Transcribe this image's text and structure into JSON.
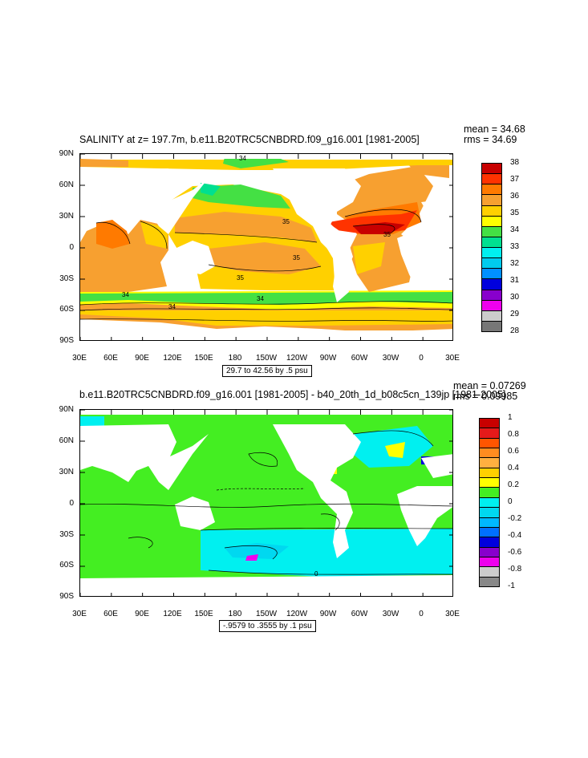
{
  "panels": [
    {
      "title": "SALINITY at z= 197.7m, b.e11.B20TRC5CNBDRD.f09_g16.001 [1981-2005]",
      "stats": [
        "mean = 34.68",
        "rms = 34.69"
      ],
      "range_label": "29.7 to 42.56 by .5 psu",
      "y_ticks": [
        "90N",
        "60N",
        "30N",
        "0",
        "30S",
        "60S",
        "90S"
      ],
      "x_ticks": [
        "30E",
        "60E",
        "90E",
        "120E",
        "150E",
        "180",
        "150W",
        "120W",
        "90W",
        "60W",
        "30W",
        "0",
        "30E"
      ],
      "legend_labels": [
        "38",
        "37",
        "36",
        "35",
        "34",
        "33",
        "32",
        "31",
        "30",
        "29",
        "28"
      ],
      "legend_colors": [
        "#c80000",
        "#ff3300",
        "#ff7a00",
        "#f7a030",
        "#ffd000",
        "#ffff00",
        "#44e044",
        "#00e090",
        "#00f0f0",
        "#00ccee",
        "#0090ff",
        "#0000dd",
        "#8800cc",
        "#ee00ee",
        "#cccccc",
        "#777777"
      ],
      "contour_labels": [
        "34",
        "35",
        "35",
        "35",
        "35",
        "34",
        "34",
        "34"
      ]
    },
    {
      "title": "b.e11.B20TRC5CNBDRD.f09_g16.001 [1981-2005] - b40_20th_1d_b08c5cn_139jp [1981-2005]",
      "stats": [
        "mean = 0.07269",
        "rms = 0.09985"
      ],
      "range_label": "-.9579 to .3555 by .1 psu",
      "y_ticks": [
        "90N",
        "60N",
        "30N",
        "0",
        "30S",
        "60S",
        "90S"
      ],
      "x_ticks": [
        "30E",
        "60E",
        "90E",
        "120E",
        "150E",
        "180",
        "150W",
        "120W",
        "90W",
        "60W",
        "30W",
        "0",
        "30E"
      ],
      "legend_labels": [
        "1",
        "0.8",
        "0.6",
        "0.4",
        "0.2",
        "0",
        "-0.2",
        "-0.4",
        "-0.6",
        "-0.8",
        "-1"
      ],
      "legend_colors": [
        "#c80000",
        "#e41a1a",
        "#ff5500",
        "#ff8c20",
        "#ffb040",
        "#ffd000",
        "#ffff00",
        "#44ee22",
        "#00f0f0",
        "#00d8f0",
        "#00b8ff",
        "#0070ff",
        "#0000dd",
        "#8800cc",
        "#ee00ee",
        "#cccccc",
        "#888888"
      ],
      "contour_labels": [
        "0"
      ]
    }
  ],
  "chart_data": [
    {
      "type": "heatmap",
      "title": "SALINITY at z= 197.7m, b.e11.B20TRC5CNBDRD.f09_g16.001 [1981-2005]",
      "xlabel": "",
      "ylabel": "",
      "x_ticks": [
        "30E",
        "60E",
        "90E",
        "120E",
        "150E",
        "180",
        "150W",
        "120W",
        "90W",
        "60W",
        "30W",
        "0",
        "30E"
      ],
      "y_ticks": [
        "90N",
        "60N",
        "30N",
        "0",
        "30S",
        "60S",
        "90S"
      ],
      "xlim": [
        30,
        390
      ],
      "ylim": [
        -90,
        90
      ],
      "color_scale": {
        "labels": [
          "28",
          "29",
          "30",
          "31",
          "32",
          "33",
          "34",
          "35",
          "36",
          "37",
          "38"
        ],
        "min": 28,
        "max": 38
      },
      "mean": 34.68,
      "rms": 34.69,
      "range": "29.7 to 42.56 by .5 psu",
      "contour_labels": [
        34,
        35,
        35,
        35,
        35,
        34,
        34,
        34
      ]
    },
    {
      "type": "heatmap",
      "title": "b.e11.B20TRC5CNBDRD.f09_g16.001 [1981-2005] - b40_20th_1d_b08c5cn_139jp [1981-2005]",
      "xlabel": "",
      "ylabel": "",
      "x_ticks": [
        "30E",
        "60E",
        "90E",
        "120E",
        "150E",
        "180",
        "150W",
        "120W",
        "90W",
        "60W",
        "30W",
        "0",
        "30E"
      ],
      "y_ticks": [
        "90N",
        "60N",
        "30N",
        "0",
        "30S",
        "60S",
        "90S"
      ],
      "xlim": [
        30,
        390
      ],
      "ylim": [
        -90,
        90
      ],
      "color_scale": {
        "labels": [
          "-1",
          "-0.8",
          "-0.6",
          "-0.4",
          "-0.2",
          "0",
          "0.2",
          "0.4",
          "0.6",
          "0.8",
          "1"
        ],
        "min": -1,
        "max": 1
      },
      "mean": 0.07269,
      "rms": 0.09985,
      "range": "-.9579 to .3555 by .1 psu",
      "contour_labels": [
        0
      ]
    }
  ]
}
